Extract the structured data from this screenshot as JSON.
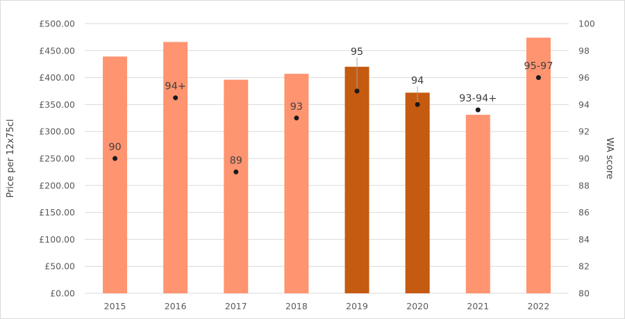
{
  "chart_data": {
    "type": "bar",
    "categories": [
      "2015",
      "2016",
      "2017",
      "2018",
      "2019",
      "2020",
      "2021",
      "2022"
    ],
    "series": [
      {
        "axis": "left",
        "kind": "bar",
        "values": [
          439,
          466,
          396,
          407,
          420,
          372,
          331,
          474
        ]
      },
      {
        "axis": "right",
        "kind": "scatter",
        "values": [
          90,
          94.5,
          89,
          93,
          95,
          94,
          93.6,
          96
        ]
      }
    ],
    "point_labels": [
      "90",
      "94+",
      "89",
      "93",
      "95",
      "94",
      "93-94+",
      "95-97"
    ],
    "highlighted_years": [
      "2019",
      "2020"
    ],
    "ylabel": "Price per 12x75cl",
    "y2label": "WA score",
    "ylim": [
      0,
      500
    ],
    "y2lim": [
      80,
      100
    ],
    "yticks": [
      "£0.00",
      "£50.00",
      "£100.00",
      "£150.00",
      "£200.00",
      "£250.00",
      "£300.00",
      "£350.00",
      "£400.00",
      "£450.00",
      "£500.00"
    ],
    "y2ticks": [
      "80",
      "82",
      "84",
      "86",
      "88",
      "90",
      "92",
      "94",
      "96",
      "98",
      "100"
    ],
    "grid": true,
    "colors": {
      "bar": "#ff9470",
      "bar_highlight": "#c55a11",
      "dot": "#1a1a1a",
      "grid": "#d9d9d9",
      "leader": "#a6a6a6"
    }
  }
}
